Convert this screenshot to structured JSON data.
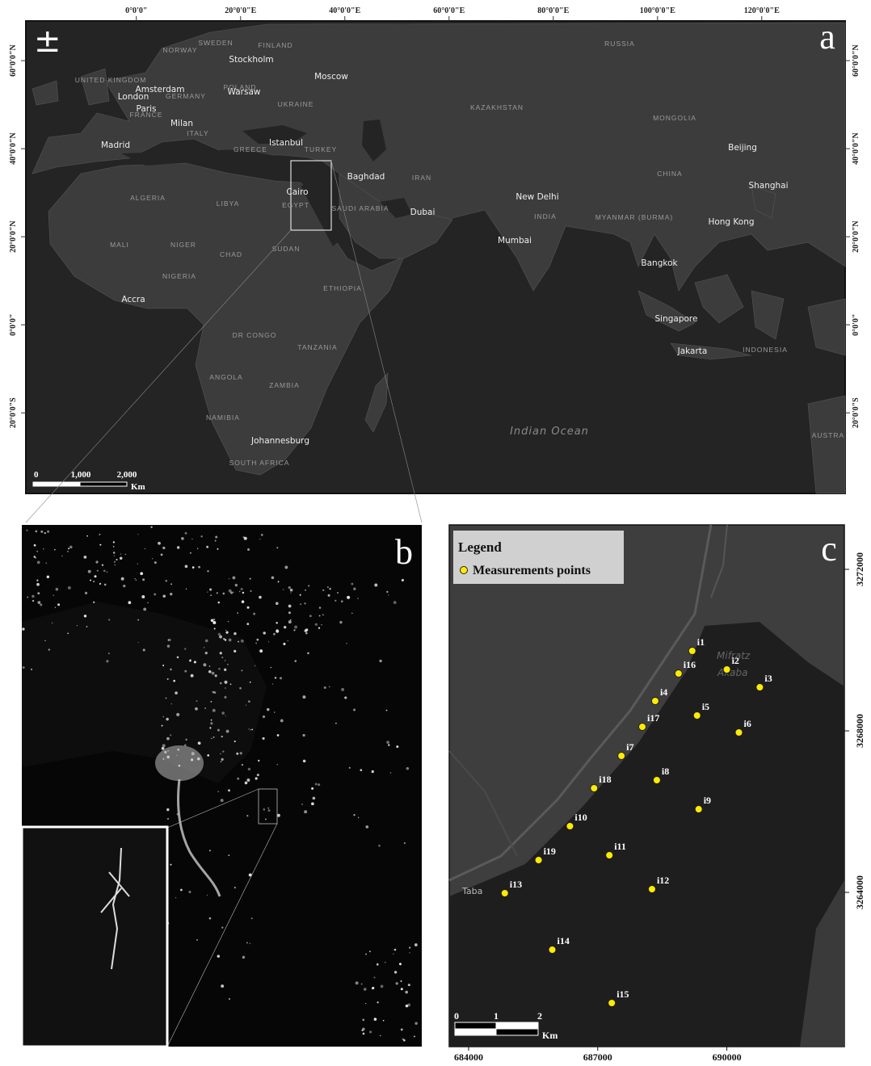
{
  "panel_a": {
    "letter": "a",
    "xlim": [
      -21.2,
      136
    ],
    "ylim": [
      -38.3,
      69
    ],
    "lon_ticks": [
      {
        "value": 0,
        "label": "0°0'0\""
      },
      {
        "value": 20,
        "label": "20°0'0\"E"
      },
      {
        "value": 40,
        "label": "40°0'0\"E"
      },
      {
        "value": 60,
        "label": "60°0'0\"E"
      },
      {
        "value": 80,
        "label": "80°0'0\"E"
      },
      {
        "value": 100,
        "label": "100°0'0\"E"
      },
      {
        "value": 120,
        "label": "120°0'0\"E"
      }
    ],
    "lat_ticks": [
      {
        "value": 60,
        "label": "60°0'0\"N"
      },
      {
        "value": 40,
        "label": "40°0'0\"N"
      },
      {
        "value": 20,
        "label": "20°0'0\"N"
      },
      {
        "value": 0,
        "label": "0°0'0\""
      },
      {
        "value": -20,
        "label": "20°0'0\"S"
      }
    ],
    "cities": [
      "Stockholm",
      "Moscow",
      "Amsterdam",
      "London",
      "Warsaw",
      "Paris",
      "Milan",
      "Madrid",
      "Istanbul",
      "Cairo",
      "Baghdad",
      "Dubai",
      "New Delhi",
      "Mumbai",
      "Beijing",
      "Shanghai",
      "Hong Kong",
      "Bangkok",
      "Singapore",
      "Jakarta",
      "Accra",
      "Johannesburg"
    ],
    "countries": [
      "SWEDEN",
      "FINLAND",
      "NORWAY",
      "RUSSIA",
      "UNITED KINGDOM",
      "POLAND",
      "GERMANY",
      "UKRAINE",
      "FRANCE",
      "ITALY",
      "GREECE",
      "TURKEY",
      "KAZAKHSTAN",
      "MONGOLIA",
      "CHINA",
      "IRAN",
      "EGYPT",
      "SAUDI ARABIA",
      "INDIA",
      "MYANMAR (BURMA)",
      "ALGERIA",
      "LIBYA",
      "MALI",
      "NIGER",
      "CHAD",
      "SUDAN",
      "NIGERIA",
      "ETHIOPIA",
      "DR CONGO",
      "TANZANIA",
      "ANGOLA",
      "ZAMBIA",
      "NAMIBIA",
      "SOUTH AFRICA",
      "INDONESIA",
      "AUSTRA"
    ],
    "ocean": "Indian Ocean",
    "scale_bar": {
      "labels": [
        "0",
        "1,000",
        "2,000"
      ],
      "unit": "Km"
    }
  },
  "panel_b": {
    "letter": "b"
  },
  "panel_c": {
    "letter": "c",
    "legend_title": "Legend",
    "legend_entry": "Measurements points",
    "xlim": [
      683550,
      692730
    ],
    "ylim": [
      3260180,
      3273100
    ],
    "xticks": [
      684000,
      687000,
      690000
    ],
    "yticks": [
      3264000,
      3268000,
      3272000
    ],
    "map_labels": [
      "Taba",
      "Mifratz",
      "Akaba"
    ],
    "points": [
      {
        "label": "i1",
        "x": 689196,
        "y": 3269980
      },
      {
        "label": "i2",
        "x": 690000,
        "y": 3269520
      },
      {
        "label": "i3",
        "x": 690766,
        "y": 3269080
      },
      {
        "label": "i16",
        "x": 688878,
        "y": 3269420
      },
      {
        "label": "i4",
        "x": 688336,
        "y": 3268740
      },
      {
        "label": "i5",
        "x": 689308,
        "y": 3268380
      },
      {
        "label": "i17",
        "x": 688037,
        "y": 3268100
      },
      {
        "label": "i6",
        "x": 690280,
        "y": 3267960
      },
      {
        "label": "i7",
        "x": 687551,
        "y": 3267380
      },
      {
        "label": "i8",
        "x": 688373,
        "y": 3266780
      },
      {
        "label": "i18",
        "x": 686916,
        "y": 3266580
      },
      {
        "label": "i9",
        "x": 689345,
        "y": 3266060
      },
      {
        "label": "i10",
        "x": 686355,
        "y": 3265640
      },
      {
        "label": "i11",
        "x": 687271,
        "y": 3264920
      },
      {
        "label": "i19",
        "x": 685626,
        "y": 3264800
      },
      {
        "label": "i12",
        "x": 688261,
        "y": 3264080
      },
      {
        "label": "i13",
        "x": 684841,
        "y": 3263980
      },
      {
        "label": "i14",
        "x": 685944,
        "y": 3262580
      },
      {
        "label": "i15",
        "x": 687327,
        "y": 3261260
      }
    ],
    "scale_bar": {
      "labels": [
        "0",
        "1",
        "2"
      ],
      "unit": "Km"
    }
  }
}
